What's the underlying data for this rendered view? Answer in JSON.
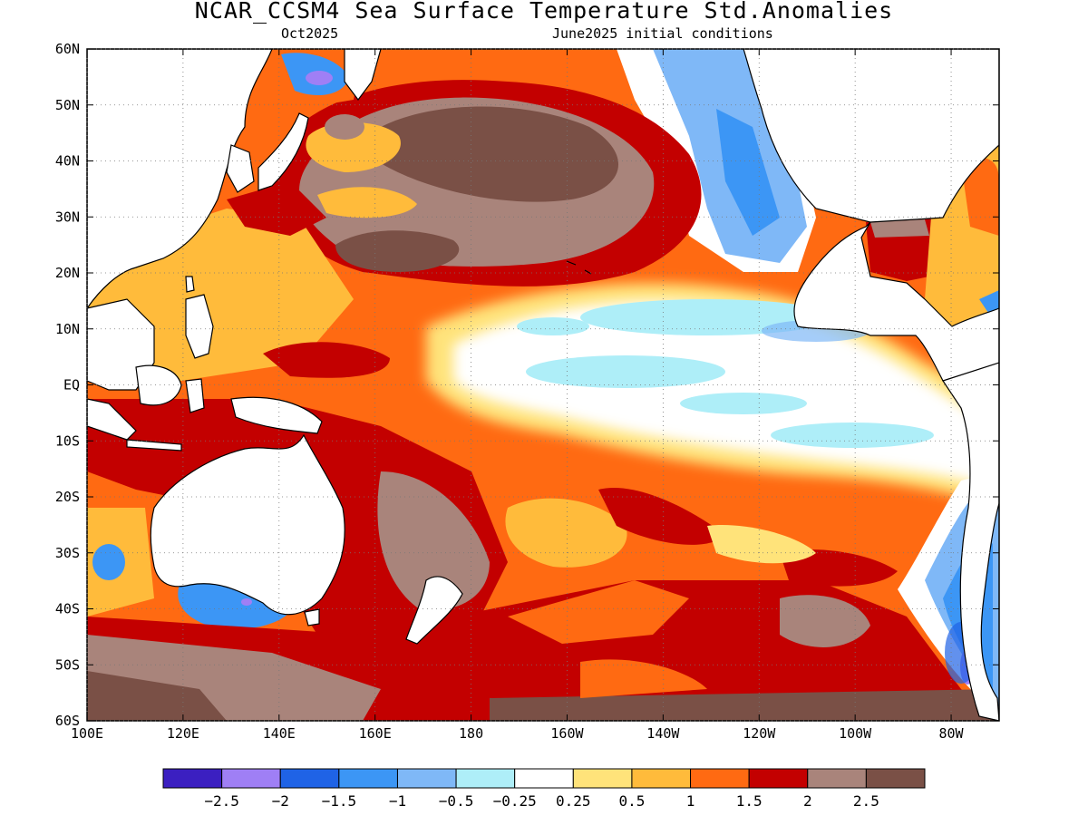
{
  "title": "NCAR_CCSM4 Sea Surface Temperature Std.Anomalies",
  "subtitle_left": "Oct2025",
  "subtitle_right": "June2025 initial conditions",
  "map_data": {
    "type": "heatmap",
    "projection": "equirectangular",
    "lon_range": [
      100,
      290
    ],
    "lat_range": [
      -60,
      60
    ],
    "x_ticks": [
      {
        "lon": 100,
        "label": "100E"
      },
      {
        "lon": 120,
        "label": "120E"
      },
      {
        "lon": 140,
        "label": "140E"
      },
      {
        "lon": 160,
        "label": "160E"
      },
      {
        "lon": 180,
        "label": "180"
      },
      {
        "lon": 200,
        "label": "160W"
      },
      {
        "lon": 220,
        "label": "140W"
      },
      {
        "lon": 240,
        "label": "120W"
      },
      {
        "lon": 260,
        "label": "100W"
      },
      {
        "lon": 280,
        "label": "80W"
      }
    ],
    "y_ticks": [
      {
        "lat": 60,
        "label": "60N"
      },
      {
        "lat": 50,
        "label": "50N"
      },
      {
        "lat": 40,
        "label": "40N"
      },
      {
        "lat": 30,
        "label": "30N"
      },
      {
        "lat": 20,
        "label": "20N"
      },
      {
        "lat": 10,
        "label": "10N"
      },
      {
        "lat": 0,
        "label": "EQ"
      },
      {
        "lat": -10,
        "label": "10S"
      },
      {
        "lat": -20,
        "label": "20S"
      },
      {
        "lat": -30,
        "label": "30S"
      },
      {
        "lat": -40,
        "label": "40S"
      },
      {
        "lat": -50,
        "label": "50S"
      },
      {
        "lat": -60,
        "label": "60S"
      }
    ],
    "grid": true,
    "colorbar": {
      "colors": [
        "#3b1fc1",
        "#9f7ff5",
        "#1f63e6",
        "#3c96f5",
        "#7fb8f7",
        "#aeeef8",
        "#ffffff",
        "#ffe37a",
        "#ffbb3b",
        "#ff6a12",
        "#c30000",
        "#a9847b",
        "#7a5046"
      ],
      "labels": [
        "−2.5",
        "−2",
        "−1.5",
        "−1",
        "−0.5",
        "−0.25",
        "0.25",
        "0.5",
        "1",
        "1.5",
        "2",
        "2.5"
      ]
    }
  }
}
